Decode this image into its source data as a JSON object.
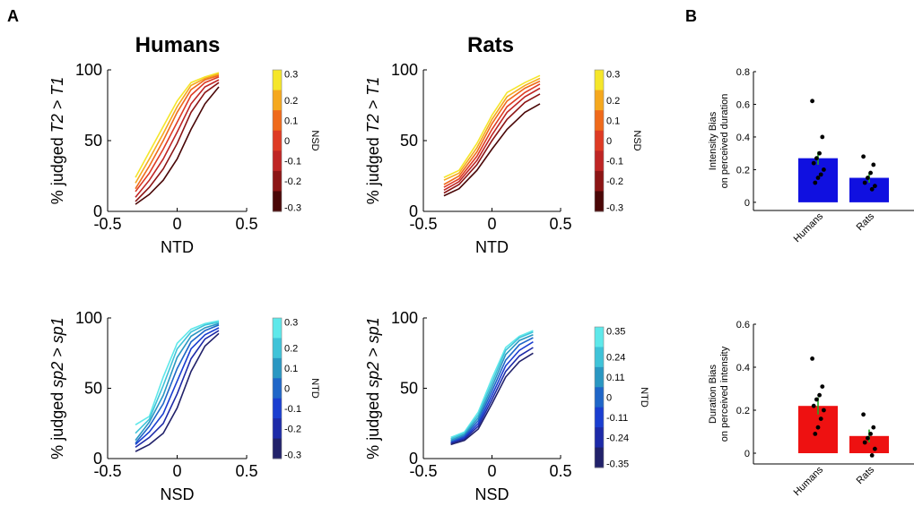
{
  "panel_labels": {
    "a": "A",
    "b": "B"
  },
  "column_titles": {
    "humans": "Humans",
    "rats": "Rats"
  },
  "chart_data": [
    {
      "id": "humans_top",
      "type": "line",
      "column": "Humans",
      "xlabel": "NTD",
      "ylabel_main": "% judged",
      "ylabel_italic": "T2 > T1",
      "xlim": [
        -0.5,
        0.5
      ],
      "ylim": [
        0,
        100
      ],
      "xticks": [
        "-0.5",
        "0",
        "0.5"
      ],
      "yticks": [
        "0",
        "50",
        "100"
      ],
      "x": [
        -0.3,
        -0.2,
        -0.1,
        0,
        0.1,
        0.2,
        0.3
      ],
      "colorbar": {
        "label": "NSD",
        "ticks": [
          "0.3",
          "0.2",
          "0.1",
          "0",
          "-0.1",
          "-0.2",
          "-0.3"
        ],
        "colors": [
          "#f5e62a",
          "#f5a81e",
          "#ef6a1b",
          "#de3b24",
          "#bf2524",
          "#8c1515",
          "#4a0707"
        ]
      },
      "series": [
        {
          "color": "#f5e62a",
          "values": [
            24,
            42,
            60,
            78,
            91,
            95,
            98
          ]
        },
        {
          "color": "#f5a81e",
          "values": [
            20,
            37,
            55,
            74,
            89,
            94,
            97
          ]
        },
        {
          "color": "#ef6a1b",
          "values": [
            16,
            32,
            50,
            70,
            86,
            93,
            96
          ]
        },
        {
          "color": "#de3b24",
          "values": [
            14,
            27,
            44,
            63,
            82,
            91,
            95
          ]
        },
        {
          "color": "#bf2524",
          "values": [
            10,
            22,
            37,
            56,
            76,
            88,
            93
          ]
        },
        {
          "color": "#8c1515",
          "values": [
            7,
            17,
            30,
            48,
            70,
            84,
            91
          ]
        },
        {
          "color": "#4a0707",
          "values": [
            5,
            12,
            22,
            37,
            58,
            76,
            88
          ]
        }
      ]
    },
    {
      "id": "rats_top",
      "type": "line",
      "column": "Rats",
      "xlabel": "NTD",
      "ylabel_main": "% judged",
      "ylabel_italic": "T2 > T1",
      "xlim": [
        -0.5,
        0.5
      ],
      "ylim": [
        0,
        100
      ],
      "xticks": [
        "-0.5",
        "0",
        "0.5"
      ],
      "yticks": [
        "0",
        "50",
        "100"
      ],
      "x": [
        -0.35,
        -0.24,
        -0.11,
        0,
        0.11,
        0.24,
        0.35
      ],
      "colorbar": {
        "label": "NSD",
        "ticks": [
          "0.3",
          "0.2",
          "0.1",
          "0",
          "-0.1",
          "-0.2",
          "-0.3"
        ],
        "colors": [
          "#f5e62a",
          "#f5a81e",
          "#ef6a1b",
          "#de3b24",
          "#bf2524",
          "#8c1515",
          "#4a0707"
        ]
      },
      "series": [
        {
          "color": "#f5e62a",
          "values": [
            24,
            29,
            48,
            68,
            84,
            91,
            96
          ]
        },
        {
          "color": "#f5a81e",
          "values": [
            22,
            27,
            45,
            65,
            81,
            89,
            94
          ]
        },
        {
          "color": "#ef6a1b",
          "values": [
            19,
            25,
            42,
            62,
            78,
            87,
            92
          ]
        },
        {
          "color": "#de3b24",
          "values": [
            17,
            23,
            39,
            58,
            74,
            84,
            90
          ]
        },
        {
          "color": "#bf2524",
          "values": [
            15,
            21,
            36,
            54,
            70,
            81,
            87
          ]
        },
        {
          "color": "#8c1515",
          "values": [
            13,
            19,
            33,
            50,
            65,
            77,
            83
          ]
        },
        {
          "color": "#4a0707",
          "values": [
            11,
            16,
            29,
            44,
            58,
            70,
            76
          ]
        }
      ]
    },
    {
      "id": "humans_bottom",
      "type": "line",
      "column": "Humans",
      "xlabel": "NSD",
      "ylabel_main": "% judged",
      "ylabel_italic": "sp2 > sp1",
      "xlim": [
        -0.5,
        0.5
      ],
      "ylim": [
        0,
        100
      ],
      "xticks": [
        "-0.5",
        "0",
        "0.5"
      ],
      "yticks": [
        "0",
        "50",
        "100"
      ],
      "x": [
        -0.3,
        -0.2,
        -0.1,
        0,
        0.1,
        0.2,
        0.3
      ],
      "colorbar": {
        "label": "NTD",
        "ticks": [
          "0.3",
          "0.2",
          "0.1",
          "0",
          "-0.1",
          "-0.2",
          "-0.3"
        ],
        "colors": [
          "#5ee8ea",
          "#3fc3d8",
          "#2a97c2",
          "#1f66c8",
          "#1a3ed0",
          "#1d2aa8",
          "#21216a"
        ]
      },
      "series": [
        {
          "color": "#5ee8ea",
          "values": [
            24,
            30,
            58,
            82,
            92,
            96,
            98
          ]
        },
        {
          "color": "#3fc3d8",
          "values": [
            18,
            28,
            52,
            78,
            90,
            95,
            97
          ]
        },
        {
          "color": "#2a97c2",
          "values": [
            13,
            26,
            45,
            72,
            87,
            93,
            96
          ]
        },
        {
          "color": "#1f66c8",
          "values": [
            11,
            23,
            39,
            64,
            83,
            91,
            95
          ]
        },
        {
          "color": "#1a3ed0",
          "values": [
            10,
            19,
            32,
            55,
            78,
            88,
            93
          ]
        },
        {
          "color": "#1d2aa8",
          "values": [
            8,
            15,
            25,
            46,
            71,
            85,
            91
          ]
        },
        {
          "color": "#21216a",
          "values": [
            5,
            10,
            18,
            36,
            62,
            80,
            89
          ]
        }
      ]
    },
    {
      "id": "rats_bottom",
      "type": "line",
      "column": "Rats",
      "xlabel": "NSD",
      "ylabel_main": "% judged",
      "ylabel_italic": "sp2 > sp1",
      "xlim": [
        -0.5,
        0.5
      ],
      "ylim": [
        0,
        100
      ],
      "xticks": [
        "-0.5",
        "0",
        "0.5"
      ],
      "yticks": [
        "0",
        "50",
        "100"
      ],
      "x": [
        -0.3,
        -0.2,
        -0.1,
        0,
        0.1,
        0.2,
        0.3
      ],
      "colorbar": {
        "label": "NTD",
        "ticks": [
          "0.35",
          "0.24",
          "0.11",
          "0",
          "-0.11",
          "-0.24",
          "-0.35"
        ],
        "colors": [
          "#5ee8ea",
          "#3fc3d8",
          "#2a97c2",
          "#1f66c8",
          "#1a3ed0",
          "#1d2aa8",
          "#21216a"
        ]
      },
      "series": [
        {
          "color": "#5ee8ea",
          "values": [
            15,
            19,
            33,
            57,
            79,
            87,
            91
          ]
        },
        {
          "color": "#3fc3d8",
          "values": [
            14,
            18,
            31,
            54,
            77,
            86,
            90
          ]
        },
        {
          "color": "#2a97c2",
          "values": [
            13,
            17,
            29,
            51,
            74,
            84,
            88
          ]
        },
        {
          "color": "#1f66c8",
          "values": [
            12,
            16,
            27,
            48,
            70,
            81,
            86
          ]
        },
        {
          "color": "#1a3ed0",
          "values": [
            11,
            15,
            25,
            45,
            66,
            77,
            83
          ]
        },
        {
          "color": "#1d2aa8",
          "values": [
            11,
            14,
            23,
            42,
            62,
            73,
            79
          ]
        },
        {
          "color": "#21216a",
          "values": [
            10,
            13,
            21,
            39,
            58,
            69,
            75
          ]
        }
      ]
    },
    {
      "id": "intensity_bias",
      "type": "bar",
      "ylabel_line1": "Intensity Bias",
      "ylabel_line2": "on perceived duration",
      "ylim": [
        -0.05,
        0.8
      ],
      "yticks": [
        "0",
        "0.2",
        "0.4",
        "0.6",
        "0.8"
      ],
      "categories": [
        "Humans",
        "Rats"
      ],
      "values": [
        0.27,
        0.15
      ],
      "errors": [
        0.04,
        0.03
      ],
      "bar_color": "#1010e0",
      "points": [
        [
          0.62,
          0.4,
          0.3,
          0.27,
          0.24,
          0.2,
          0.17,
          0.15,
          0.12
        ],
        [
          0.28,
          0.23,
          0.18,
          0.15,
          0.12,
          0.1,
          0.08
        ]
      ]
    },
    {
      "id": "duration_bias",
      "type": "bar",
      "ylabel_line1": "Duration Bias",
      "ylabel_line2": "on perceived intensity",
      "ylim": [
        -0.05,
        0.6
      ],
      "yticks": [
        "0",
        "0.2",
        "0.4",
        "0.6"
      ],
      "categories": [
        "Humans",
        "Rats"
      ],
      "values": [
        0.22,
        0.08
      ],
      "errors": [
        0.04,
        0.03
      ],
      "bar_color": "#ee1111",
      "points": [
        [
          0.44,
          0.31,
          0.27,
          0.25,
          0.22,
          0.2,
          0.16,
          0.12,
          0.09
        ],
        [
          0.18,
          0.12,
          0.09,
          0.07,
          0.05,
          0.02,
          -0.01
        ]
      ]
    }
  ]
}
